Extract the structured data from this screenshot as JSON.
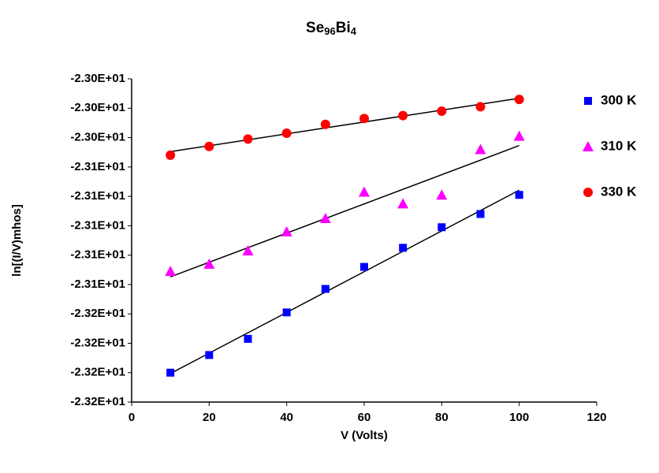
{
  "chart_data": {
    "type": "scatter",
    "title": [
      "Se",
      "96",
      "Bi",
      "4"
    ],
    "x_label": "V (Volts)",
    "y_label": "ln[(I/V)mhos]",
    "x": [
      10,
      20,
      30,
      40,
      50,
      60,
      70,
      80,
      90,
      100
    ],
    "series": [
      {
        "name": "300 K",
        "color": "#0000ff",
        "marker": "square",
        "values": [
          -23.2,
          -23.188,
          -23.177,
          -23.159,
          -23.143,
          -23.128,
          -23.115,
          -23.101,
          -23.092,
          -23.079
        ]
      },
      {
        "name": "310 K",
        "color": "#ff00ff",
        "marker": "triangle",
        "values": [
          -23.131,
          -23.126,
          -23.117,
          -23.104,
          -23.095,
          -23.077,
          -23.085,
          -23.079,
          -23.048,
          -23.039
        ]
      },
      {
        "name": "330 K",
        "color": "#ff0000",
        "marker": "circle",
        "values": [
          -23.052,
          -23.046,
          -23.041,
          -23.037,
          -23.031,
          -23.027,
          -23.025,
          -23.022,
          -23.019,
          -23.014
        ]
      }
    ],
    "trendline": true,
    "xlim": [
      0,
      120
    ],
    "xticks": [
      0,
      20,
      40,
      60,
      80,
      100,
      120
    ],
    "ylim": [
      -23.22,
      -23.0
    ],
    "yticks": [
      {
        "value": -23.0,
        "label": "-2.30E+01"
      },
      {
        "value": -23.02,
        "label": "-2.30E+01"
      },
      {
        "value": -23.04,
        "label": "-2.30E+01"
      },
      {
        "value": -23.06,
        "label": "-2.31E+01"
      },
      {
        "value": -23.08,
        "label": "-2.31E+01"
      },
      {
        "value": -23.1,
        "label": "-2.31E+01"
      },
      {
        "value": -23.12,
        "label": "-2.31E+01"
      },
      {
        "value": -23.14,
        "label": "-2.31E+01"
      },
      {
        "value": -23.16,
        "label": "-2.32E+01"
      },
      {
        "value": -23.18,
        "label": "-2.32E+01"
      },
      {
        "value": -23.2,
        "label": "-2.32E+01"
      },
      {
        "value": -23.22,
        "label": "-2.32E+01"
      }
    ],
    "grid": false,
    "legend": "right"
  }
}
